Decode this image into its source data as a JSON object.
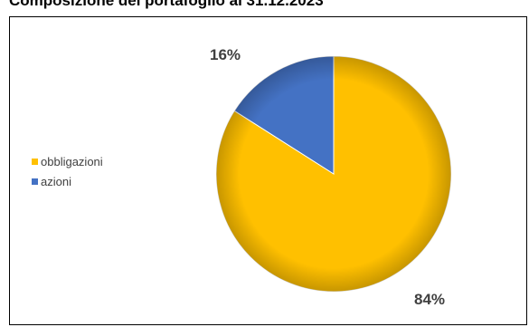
{
  "chart_data": {
    "type": "pie",
    "title": "Composizione del portafoglio al 31.12.2023",
    "slices": [
      {
        "label": "obbligazioni",
        "value": 84,
        "display": "84%",
        "color": "#FFC000"
      },
      {
        "label": "azioni",
        "value": 16,
        "display": "16%",
        "color": "#4472C4"
      }
    ],
    "legend_position": "left"
  }
}
